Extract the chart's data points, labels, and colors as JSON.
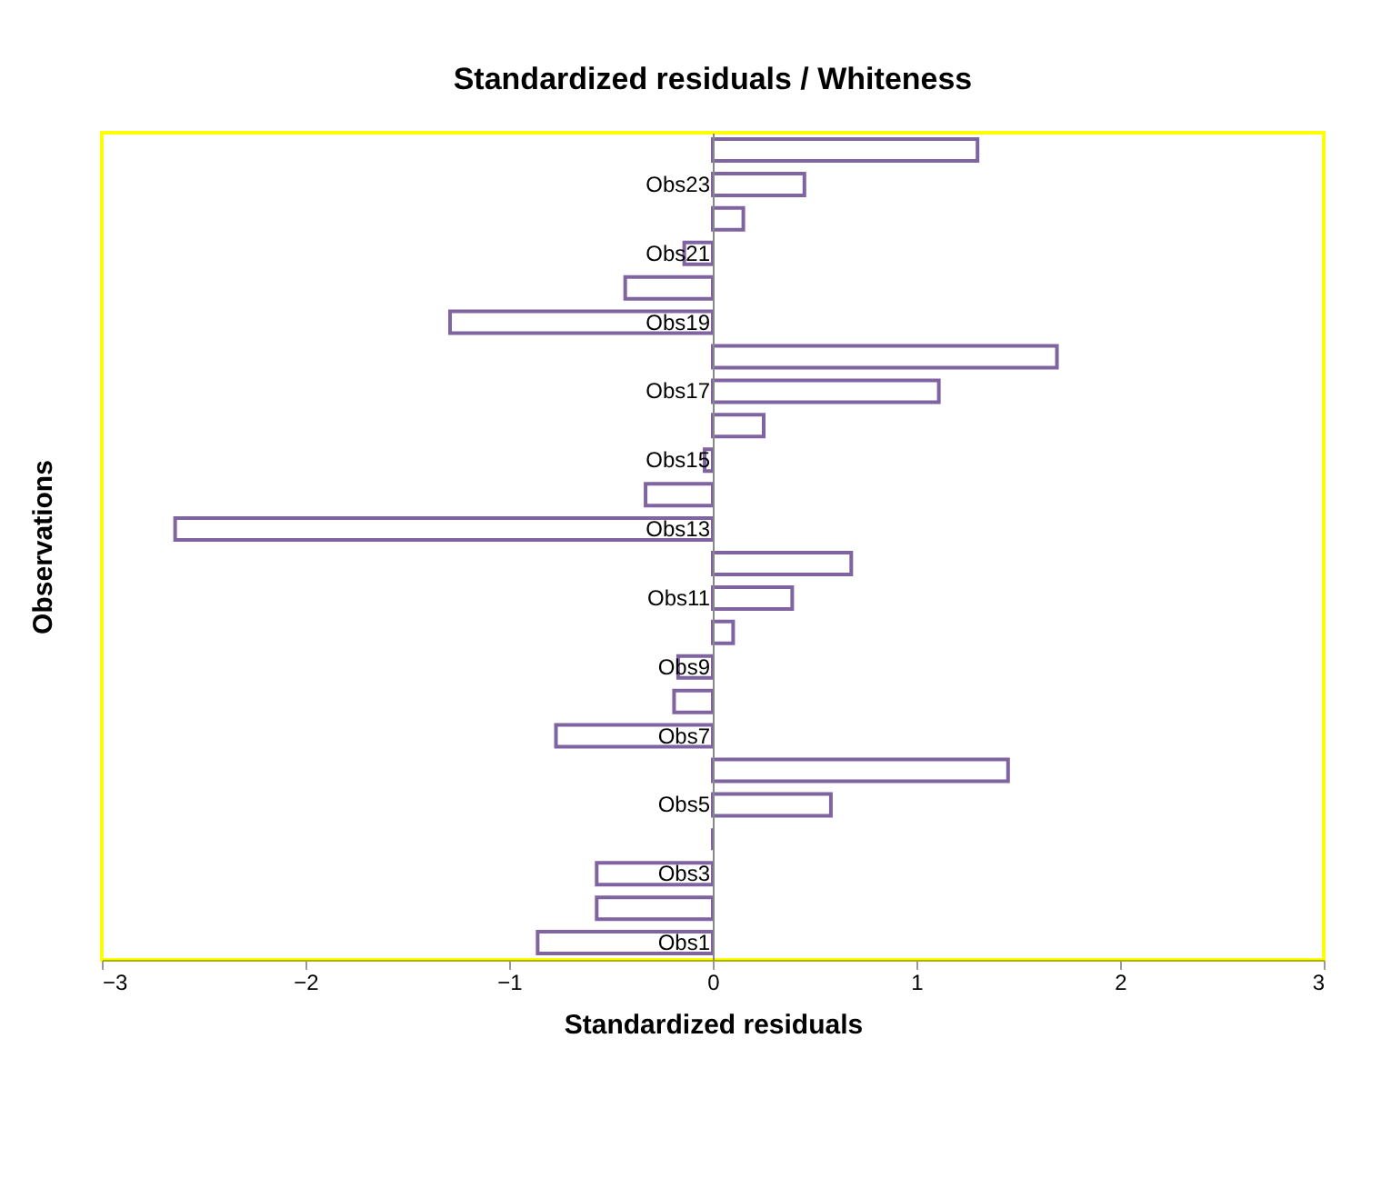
{
  "chart_data": {
    "type": "bar",
    "orientation": "horizontal",
    "title": "Standardized residuals / Whiteness",
    "xlabel": "Standardized residuals",
    "ylabel": "Observations",
    "categories": [
      null,
      "Obs23",
      null,
      "Obs21",
      null,
      "Obs19",
      null,
      "Obs17",
      null,
      "Obs15",
      null,
      "Obs13",
      null,
      "Obs11",
      null,
      "Obs9",
      null,
      "Obs7",
      null,
      "Obs5",
      null,
      "Obs3",
      null,
      "Obs1"
    ],
    "series": [
      {
        "color": "#8064a2",
        "values": [
          1.3,
          0.45,
          0.15,
          -0.14,
          -0.43,
          -1.29,
          1.69,
          1.11,
          0.25,
          -0.04,
          -0.33,
          -2.64,
          0.68,
          0.39,
          0.1,
          -0.17,
          -0.19,
          -0.77,
          1.45,
          0.58,
          0.0,
          -0.57,
          -0.57,
          -0.86
        ]
      }
    ],
    "xlim": [
      -3,
      3
    ],
    "xticks": [
      -3,
      -2,
      -1,
      0,
      1,
      2,
      3
    ],
    "grid": false
  }
}
